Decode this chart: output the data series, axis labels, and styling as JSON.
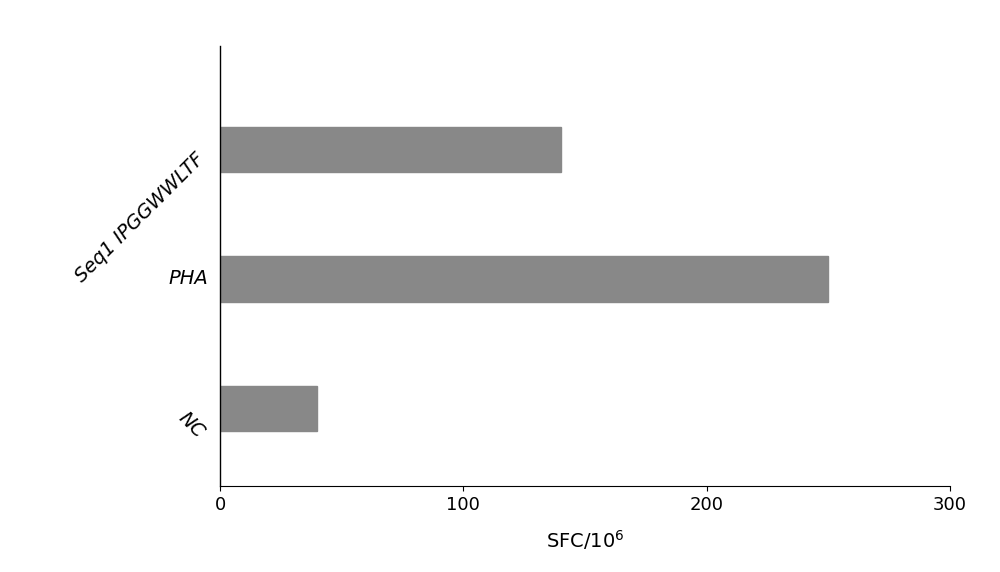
{
  "categories": [
    "NC",
    "PHA",
    "Seq1 IPGGWWLTF"
  ],
  "values": [
    40,
    250,
    140
  ],
  "bar_color": "#888888",
  "xlabel": "SFC/10$^6$",
  "xlim": [
    0,
    300
  ],
  "xticks": [
    0,
    100,
    200,
    300
  ],
  "bar_height": 0.35,
  "background_color": "#ffffff",
  "label_fontsize": 14,
  "xlabel_fontsize": 14,
  "tick_fontsize": 13,
  "ytick_rotations": [
    315,
    315,
    315
  ],
  "figsize": [
    10.0,
    5.72
  ]
}
